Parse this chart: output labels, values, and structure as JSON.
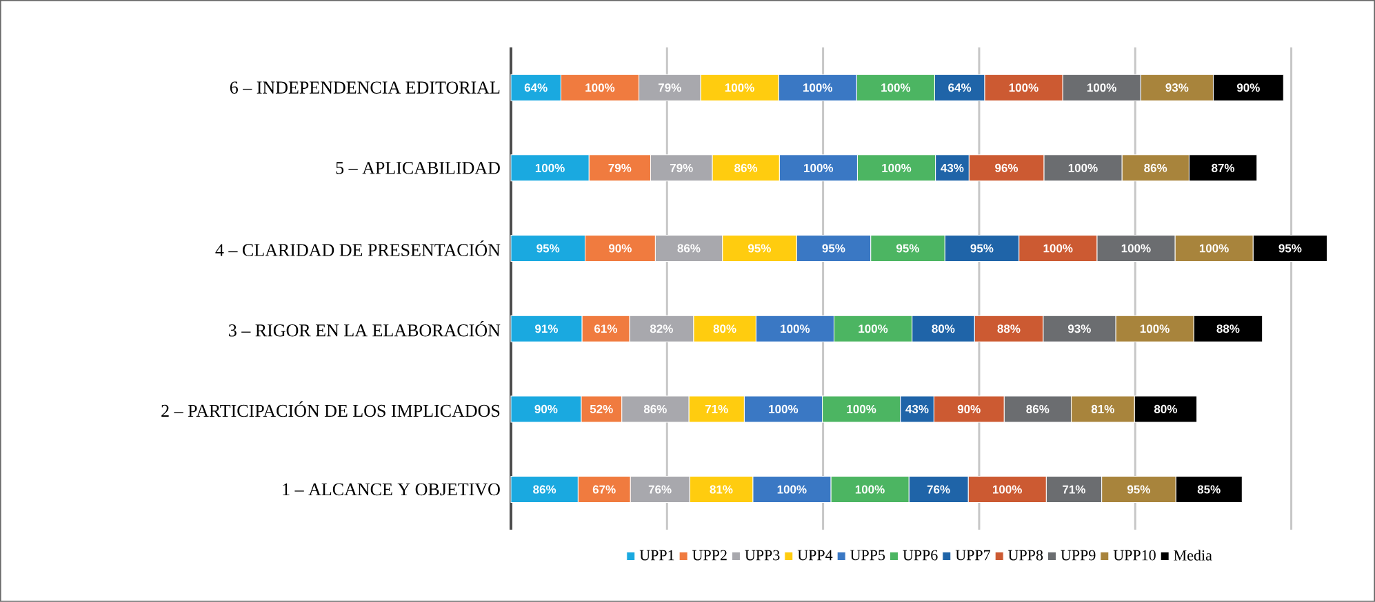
{
  "chart_data": {
    "type": "bar",
    "orientation": "horizontal",
    "stacked": true,
    "categories": [
      "6 – INDEPENDENCIA EDITORIAL",
      "5 –  APLICABILIDAD",
      "4 –  CLARIDAD DE PRESENTACIÓN",
      "3 – RIGOR EN LA ELABORACIÓN",
      "2 –  PARTICIPACIÓN DE LOS IMPLICADOS",
      "1 –  ALCANCE Y OBJETIVO"
    ],
    "series": [
      {
        "name": "UPP1",
        "color": "#1aa9e0",
        "values": [
          64,
          100,
          95,
          91,
          90,
          86
        ],
        "value_labels": [
          "64%",
          "100%",
          "95%",
          "91%",
          "90%",
          "86%"
        ]
      },
      {
        "name": "UPP2",
        "color": "#f07b3f",
        "values": [
          100,
          79,
          90,
          61,
          52,
          67
        ],
        "value_labels": [
          "100%",
          "79%",
          "90%",
          "61%",
          "52%",
          "67%"
        ]
      },
      {
        "name": "UPP3",
        "color": "#a8a8ad",
        "values": [
          79,
          79,
          86,
          82,
          86,
          76
        ],
        "value_labels": [
          "79%",
          "79%",
          "86%",
          "82%",
          "86%",
          "76%"
        ]
      },
      {
        "name": "UPP4",
        "color": "#ffcc0f",
        "values": [
          100,
          86,
          95,
          80,
          71,
          81
        ],
        "value_labels": [
          "100%",
          "86%",
          "95%",
          "80%",
          "71%",
          "81%"
        ]
      },
      {
        "name": "UPP5",
        "color": "#3a78c4",
        "values": [
          100,
          100,
          95,
          100,
          100,
          100
        ],
        "value_labels": [
          "100%",
          "100%",
          "95%",
          "100%",
          "100%",
          "100%"
        ]
      },
      {
        "name": "UPP6",
        "color": "#4cb562",
        "values": [
          100,
          100,
          95,
          100,
          100,
          100
        ],
        "value_labels": [
          "100%",
          "100%",
          "95%",
          "100%",
          "100%",
          "100%"
        ]
      },
      {
        "name": "UPP7",
        "color": "#1f64a8",
        "values": [
          64,
          43,
          95,
          80,
          43,
          76
        ],
        "value_labels": [
          "64%",
          "43%",
          "95%",
          "80%",
          "43%",
          "76%"
        ]
      },
      {
        "name": "UPP8",
        "color": "#cc5a32",
        "values": [
          100,
          96,
          100,
          88,
          90,
          100
        ],
        "value_labels": [
          "100%",
          "96%",
          "100%",
          "88%",
          "90%",
          "100%"
        ]
      },
      {
        "name": "UPP9",
        "color": "#6b6d70",
        "values": [
          100,
          100,
          100,
          93,
          86,
          71
        ],
        "value_labels": [
          "100%",
          "100%",
          "100%",
          "93%",
          "86%",
          "71%"
        ]
      },
      {
        "name": "UPP10",
        "color": "#a8843c",
        "values": [
          93,
          86,
          100,
          100,
          81,
          95
        ],
        "value_labels": [
          "93%",
          "86%",
          "100%",
          "100%",
          "81%",
          "95%"
        ]
      },
      {
        "name": "Media",
        "color": "#000000",
        "values": [
          90,
          87,
          95,
          88,
          80,
          85
        ],
        "value_labels": [
          "90%",
          "87%",
          "95%",
          "88%",
          "80%",
          "85%"
        ]
      }
    ],
    "xlim": [
      0,
      1050
    ],
    "xticks": [
      {
        "value": 0,
        "label": null
      },
      {
        "value": 200,
        "label": null
      },
      {
        "value": 400,
        "label": null
      },
      {
        "value": 600,
        "label": null
      },
      {
        "value": 800,
        "label": null
      },
      {
        "value": 1000,
        "label": null
      }
    ],
    "tick_labels": "y",
    "grid": "x",
    "legend": "bottom"
  }
}
